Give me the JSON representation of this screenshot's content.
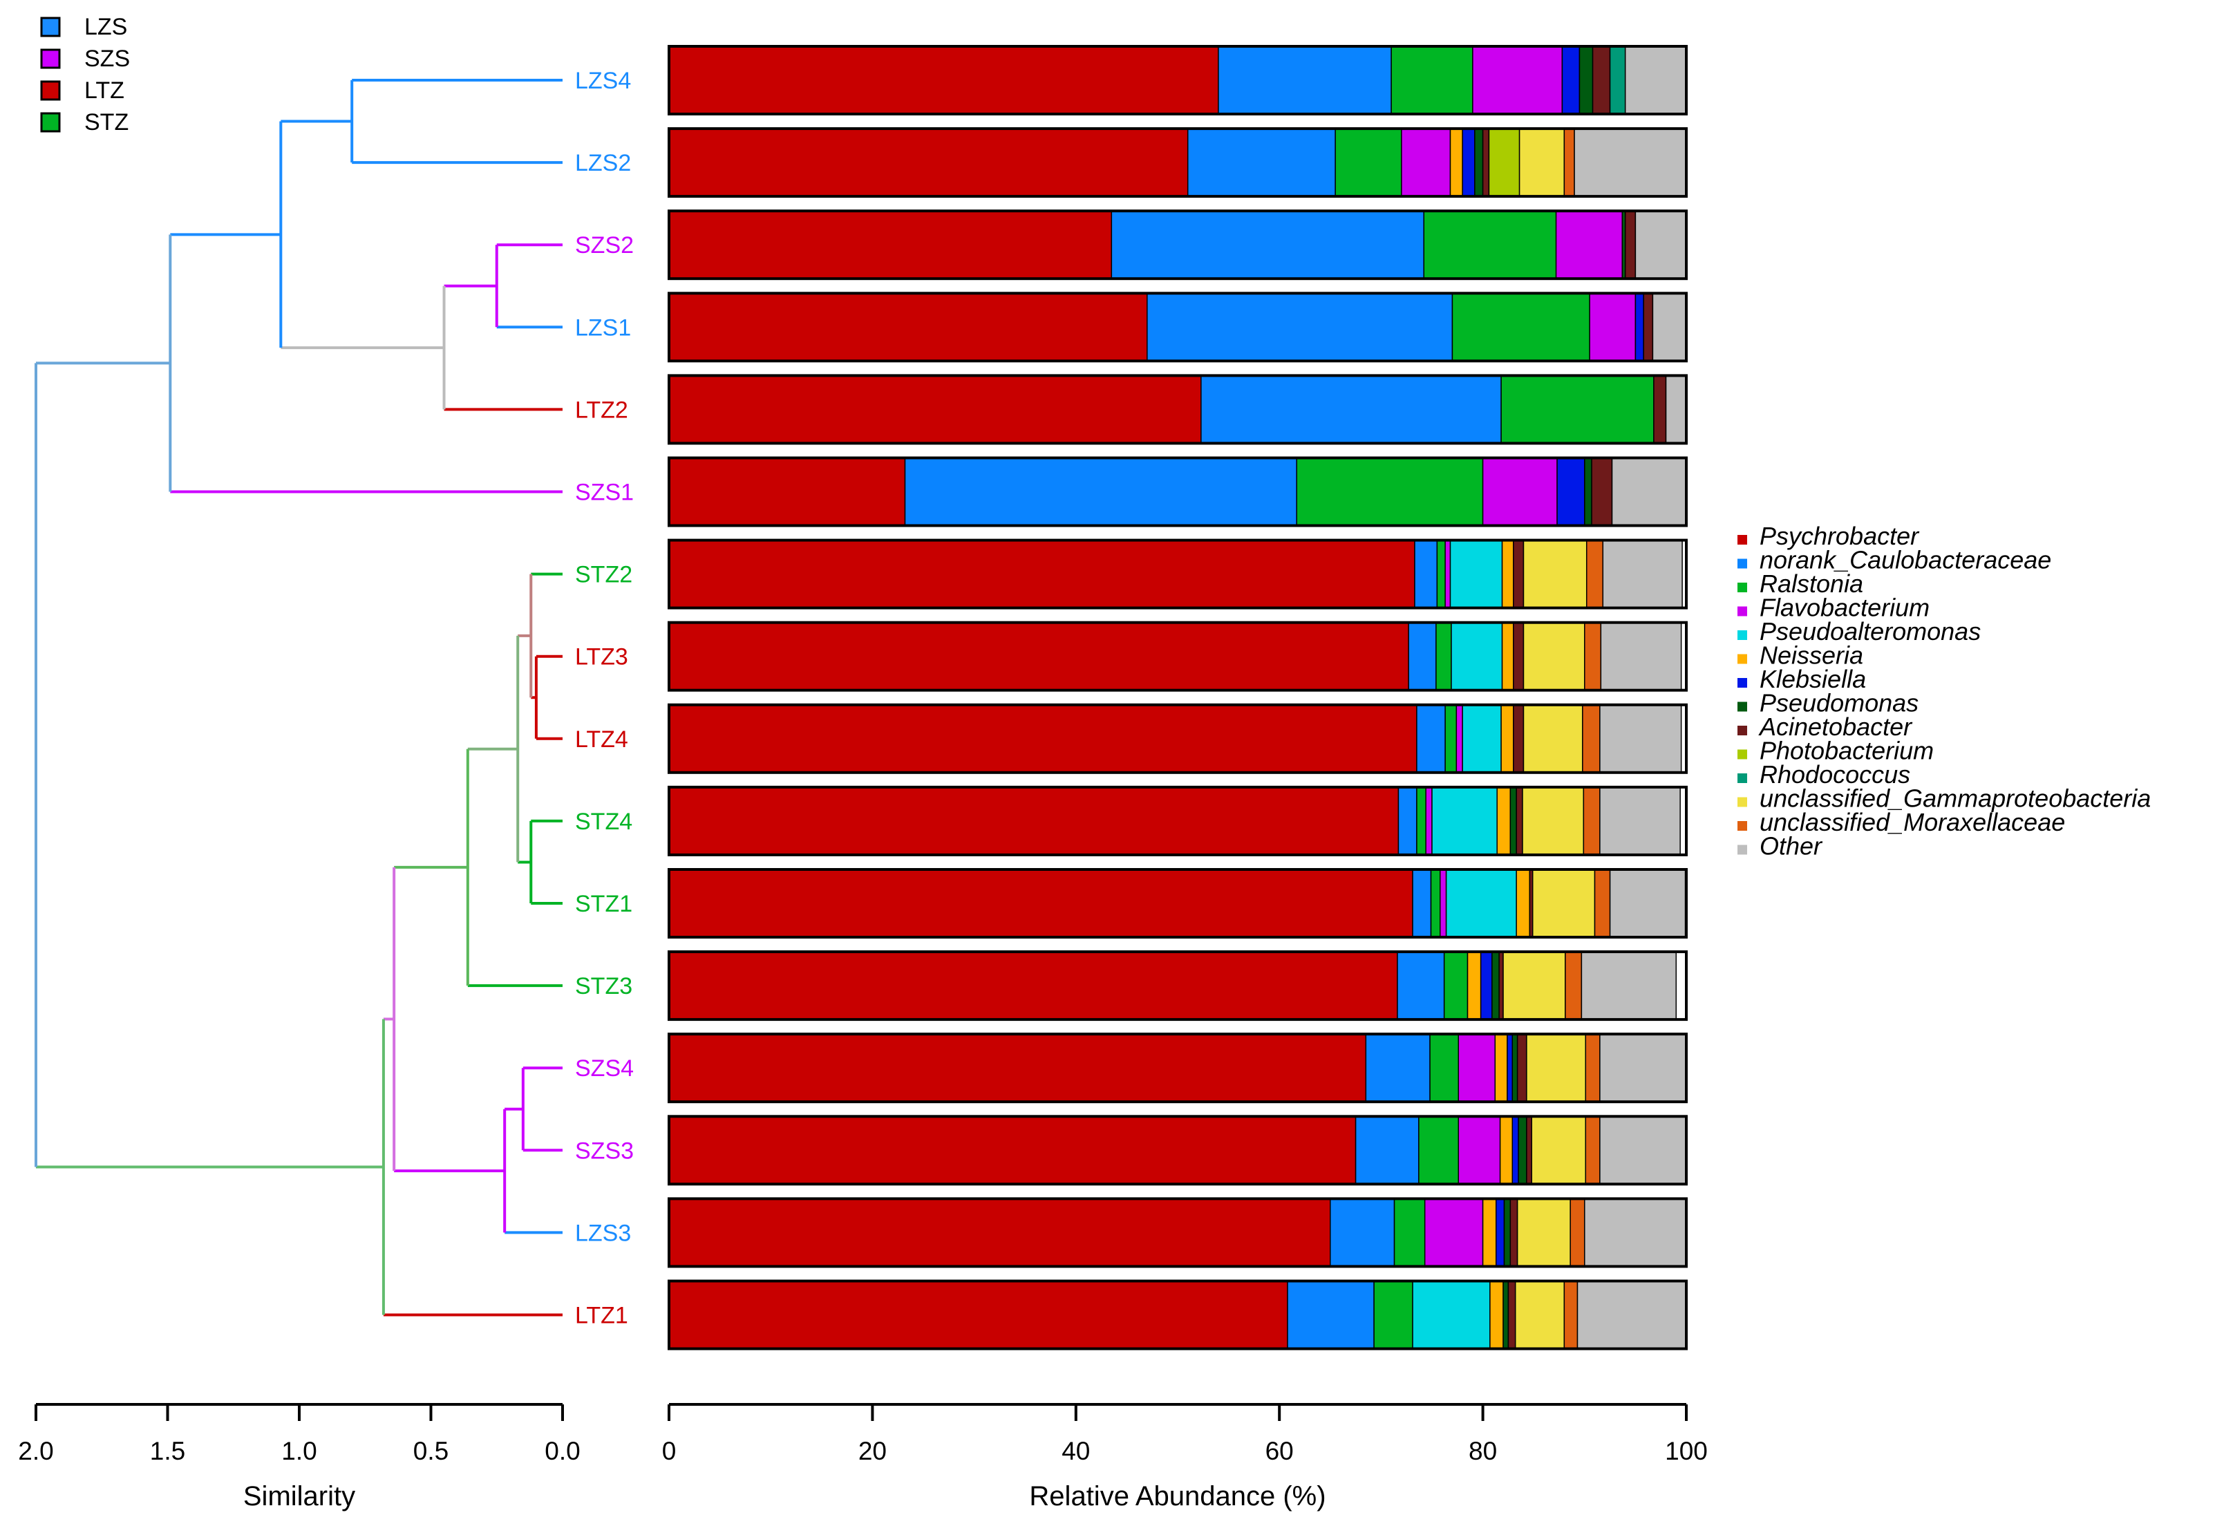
{
  "chart_data": {
    "type": "stacked-bar-with-dendrogram",
    "group_legend": [
      {
        "name": "LZS",
        "color": "#1A8CFF"
      },
      {
        "name": "SZS",
        "color": "#CC00FF"
      },
      {
        "name": "LTZ",
        "color": "#CC0000"
      },
      {
        "name": "STZ",
        "color": "#00B324"
      }
    ],
    "taxa": [
      {
        "name": "Psychrobacter",
        "color": "#C80000"
      },
      {
        "name": "norank_Caulobacteraceae",
        "color": "#0A84FF"
      },
      {
        "name": "Ralstonia",
        "color": "#00B624"
      },
      {
        "name": "Flavobacterium",
        "color": "#CC00F0"
      },
      {
        "name": "Pseudoalteromonas",
        "color": "#00D8E2"
      },
      {
        "name": "Neisseria",
        "color": "#FFB000"
      },
      {
        "name": "Klebsiella",
        "color": "#0018E8"
      },
      {
        "name": "Pseudomonas",
        "color": "#005A10"
      },
      {
        "name": "Acinetobacter",
        "color": "#6E1A1A"
      },
      {
        "name": "Photobacterium",
        "color": "#AACC00"
      },
      {
        "name": "Rhodococcus",
        "color": "#009A78"
      },
      {
        "name": "unclassified_Gammaproteobacteria",
        "color": "#F0E040"
      },
      {
        "name": "unclassified_Moraxellaceae",
        "color": "#E06010"
      },
      {
        "name": "Other",
        "color": "#BEBEBE"
      }
    ],
    "samples": [
      {
        "name": "LZS4",
        "group": "LZS",
        "values": [
          54,
          17,
          8,
          8.8,
          0,
          0,
          1.7,
          1.3,
          1.7,
          0,
          1.5,
          0,
          0,
          6
        ]
      },
      {
        "name": "LZS2",
        "group": "LZS",
        "values": [
          51,
          14.5,
          6.5,
          4.8,
          0,
          1.2,
          1.2,
          0.8,
          0.6,
          3,
          0,
          4.4,
          1,
          11
        ]
      },
      {
        "name": "SZS2",
        "group": "SZS",
        "values": [
          43.5,
          30.7,
          13,
          6.5,
          0,
          0,
          0,
          0.3,
          1,
          0,
          0,
          0,
          0,
          5
        ]
      },
      {
        "name": "LZS1",
        "group": "LZS",
        "values": [
          47,
          30,
          13.5,
          4.5,
          0,
          0,
          0.8,
          0,
          0.9,
          0,
          0,
          0,
          0,
          3.3
        ]
      },
      {
        "name": "LTZ2",
        "group": "LTZ",
        "values": [
          52.3,
          29.5,
          15,
          0,
          0,
          0,
          0,
          0,
          1.2,
          0,
          0,
          0,
          0,
          2
        ]
      },
      {
        "name": "SZS1",
        "group": "SZS",
        "values": [
          23.2,
          38.5,
          18.3,
          7.3,
          0,
          0,
          2.7,
          0.7,
          2,
          0,
          0,
          0,
          0,
          7.3
        ]
      },
      {
        "name": "STZ2",
        "group": "STZ",
        "values": [
          73.3,
          2.2,
          0.8,
          0.5,
          5.1,
          1.1,
          0,
          0,
          1,
          0,
          0,
          6.2,
          1.6,
          7.8
        ]
      },
      {
        "name": "LTZ3",
        "group": "LTZ",
        "values": [
          72.7,
          2.7,
          1.5,
          0,
          5,
          1.1,
          0,
          0,
          1,
          0,
          0,
          6,
          1.6,
          7.9
        ]
      },
      {
        "name": "LTZ4",
        "group": "LTZ",
        "values": [
          73.5,
          2.8,
          1.1,
          0.6,
          3.8,
          1.2,
          0,
          0,
          1,
          0,
          0,
          5.8,
          1.7,
          8
        ]
      },
      {
        "name": "STZ4",
        "group": "STZ",
        "values": [
          71.7,
          1.8,
          0.9,
          0.6,
          6.4,
          1.3,
          0,
          0.6,
          0.6,
          0,
          0,
          6,
          1.6,
          7.9
        ]
      },
      {
        "name": "STZ1",
        "group": "STZ",
        "values": [
          73.1,
          1.8,
          0.9,
          0.6,
          6.9,
          1.3,
          0,
          0,
          0.3,
          0,
          0,
          6.1,
          1.5,
          7.4
        ]
      },
      {
        "name": "STZ3",
        "group": "STZ",
        "values": [
          71.6,
          4.6,
          2.3,
          0,
          0,
          1.3,
          1.1,
          0.7,
          0.4,
          0,
          0,
          6.1,
          1.6,
          9.3
        ]
      },
      {
        "name": "SZS4",
        "group": "SZS",
        "values": [
          68.5,
          6.3,
          2.8,
          3.6,
          0,
          1.2,
          0.5,
          0.5,
          0.9,
          0,
          0,
          5.8,
          1.4,
          8.5
        ]
      },
      {
        "name": "SZS3",
        "group": "SZS",
        "values": [
          67.5,
          6.2,
          3.9,
          4.1,
          0,
          1.2,
          0.6,
          0.8,
          0.5,
          0,
          0,
          5.3,
          1.4,
          8.5
        ]
      },
      {
        "name": "LZS3",
        "group": "LZS",
        "values": [
          65,
          6.3,
          3,
          5.7,
          0,
          1.3,
          0.8,
          0.6,
          0.7,
          0,
          0,
          5.2,
          1.4,
          10
        ]
      },
      {
        "name": "LTZ1",
        "group": "LTZ",
        "values": [
          60.8,
          8.5,
          3.8,
          0,
          7.6,
          1.3,
          0,
          0.5,
          0.7,
          0,
          0,
          4.8,
          1.3,
          10.7
        ]
      }
    ],
    "bar_axis": {
      "label": "Relative Abundance (%)",
      "range": [
        0,
        100
      ],
      "ticks": [
        "0",
        "20",
        "40",
        "60",
        "80",
        "100"
      ]
    },
    "tree_axis": {
      "label": "Similarity",
      "range": [
        2.0,
        0.0
      ],
      "ticks": [
        "2.0",
        "1.5",
        "1.0",
        "0.5",
        "0.0"
      ]
    },
    "dendrogram": {
      "leaf_order": [
        "LZS4",
        "LZS2",
        "SZS2",
        "LZS1",
        "LTZ2",
        "SZS1",
        "STZ2",
        "LTZ3",
        "LTZ4",
        "STZ4",
        "STZ1",
        "STZ3",
        "SZS4",
        "SZS3",
        "LZS3",
        "LTZ1"
      ],
      "merges": [
        {
          "a": "LTZ3",
          "b": "LTZ4",
          "height": 0.1,
          "color": "#CC0000"
        },
        {
          "a": "STZ4",
          "b": "STZ1",
          "height": 0.12,
          "color": "#00B324"
        },
        {
          "a": "STZ2",
          "b": "m0",
          "height": 0.12,
          "color": "#BF7F7F"
        },
        {
          "a": "SZS4",
          "b": "SZS3",
          "height": 0.15,
          "color": "#CC00FF"
        },
        {
          "a": "m2",
          "b": "m1",
          "height": 0.17,
          "color": "#80B37F"
        },
        {
          "a": "m3",
          "b": "LZS3",
          "height": 0.22,
          "color": "#CC00FF"
        },
        {
          "a": "SZS2",
          "b": "LZS1",
          "height": 0.25,
          "color": "#CC00FF"
        },
        {
          "a": "m4",
          "b": "STZ3",
          "height": 0.36,
          "color": "#5BB85B"
        },
        {
          "a": "m6",
          "b": "LTZ2",
          "height": 0.45,
          "color": "#BBBBBB"
        },
        {
          "a": "m7",
          "b": "m5",
          "height": 0.64,
          "color": "#D46FE0"
        },
        {
          "a": "m9",
          "b": "LTZ1",
          "height": 0.68,
          "color": "#62BC6E"
        },
        {
          "a": "LZS4",
          "b": "LZS2",
          "height": 0.8,
          "color": "#1A8CFF"
        },
        {
          "a": "m11",
          "b": "m8",
          "height": 1.07,
          "color": "#1A8CFF"
        },
        {
          "a": "m12",
          "b": "SZS1",
          "height": 1.49,
          "color": "#6AA6D9"
        },
        {
          "a": "m13",
          "b": "m10",
          "height": 2.0,
          "color": "#6AA6D9"
        }
      ]
    }
  }
}
